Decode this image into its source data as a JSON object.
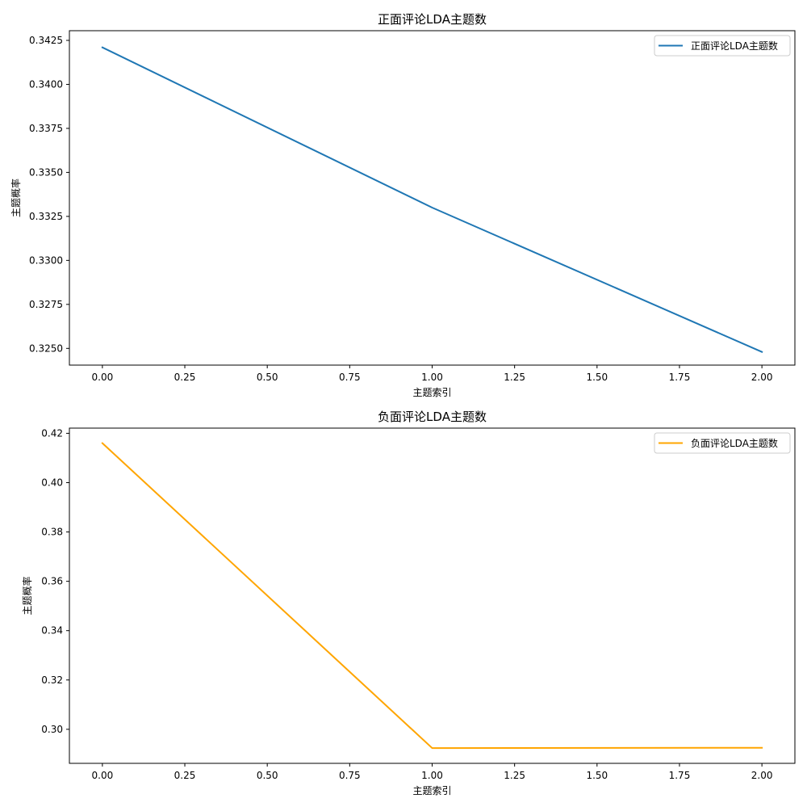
{
  "chart_data": [
    {
      "type": "line",
      "title": "正面评论LDA主题数",
      "xlabel": "主题索引",
      "ylabel": "主题概率",
      "x": [
        0,
        1,
        2
      ],
      "xlim": [
        -0.1,
        2.1
      ],
      "ylim": [
        0.32405,
        0.34305
      ],
      "xticks": [
        0.0,
        0.25,
        0.5,
        0.75,
        1.0,
        1.25,
        1.5,
        1.75,
        2.0
      ],
      "xtick_labels": [
        "0.00",
        "0.25",
        "0.50",
        "0.75",
        "1.00",
        "1.25",
        "1.50",
        "1.75",
        "2.00"
      ],
      "yticks": [
        0.325,
        0.3275,
        0.33,
        0.3325,
        0.335,
        0.3375,
        0.34,
        0.3425
      ],
      "ytick_labels": [
        "0.3250",
        "0.3275",
        "0.3300",
        "0.3325",
        "0.3350",
        "0.3375",
        "0.3400",
        "0.3425"
      ],
      "grid": false,
      "legend_position": "upper right",
      "series": [
        {
          "name": "正面评论LDA主题数",
          "color": "#1f77b4",
          "values": [
            0.3421,
            0.333,
            0.3248
          ]
        }
      ]
    },
    {
      "type": "line",
      "title": "负面评论LDA主题数",
      "xlabel": "主题索引",
      "ylabel": "主题概率",
      "x": [
        0,
        1,
        2
      ],
      "xlim": [
        -0.1,
        2.1
      ],
      "ylim": [
        0.2862,
        0.4221
      ],
      "xticks": [
        0.0,
        0.25,
        0.5,
        0.75,
        1.0,
        1.25,
        1.5,
        1.75,
        2.0
      ],
      "xtick_labels": [
        "0.00",
        "0.25",
        "0.50",
        "0.75",
        "1.00",
        "1.25",
        "1.50",
        "1.75",
        "2.00"
      ],
      "yticks": [
        0.3,
        0.32,
        0.34,
        0.36,
        0.38,
        0.4,
        0.42
      ],
      "ytick_labels": [
        "0.30",
        "0.32",
        "0.34",
        "0.36",
        "0.38",
        "0.40",
        "0.42"
      ],
      "grid": false,
      "legend_position": "upper right",
      "series": [
        {
          "name": "负面评论LDA主题数",
          "color": "#ffa500",
          "values": [
            0.416,
            0.2924,
            0.2925
          ]
        }
      ]
    }
  ]
}
